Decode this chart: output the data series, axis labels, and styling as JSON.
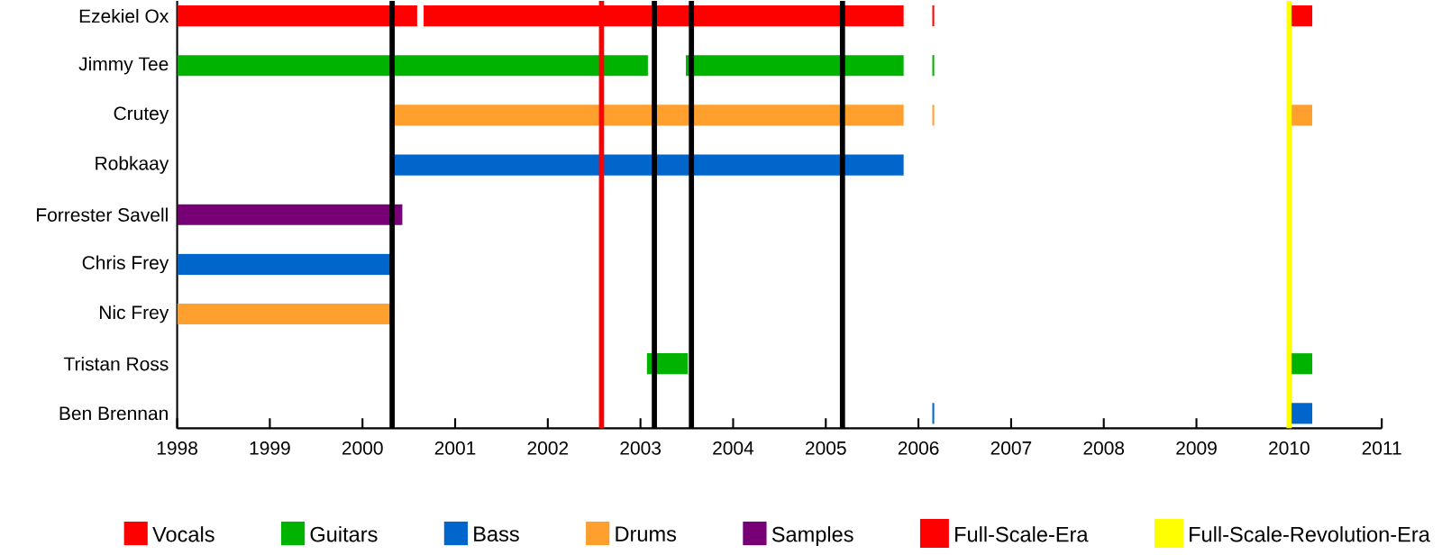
{
  "chart_data": {
    "type": "bar",
    "orientation": "horizontal",
    "legend": "bottom",
    "grid": false,
    "categories": [
      "Ezekiel Ox",
      "Jimmy Tee",
      "Crutey",
      "Robkaay",
      "Forrester Savell",
      "Chris Frey",
      "Nic Frey",
      "Tristan Ross",
      "Ben Brennan"
    ],
    "xlim": [
      1998,
      2011
    ],
    "xticks": [
      1998,
      1999,
      2000,
      2001,
      2002,
      2003,
      2004,
      2005,
      2006,
      2007,
      2008,
      2009,
      2010,
      2011
    ],
    "series": [
      {
        "name": "Vocals",
        "color": "#ff0000",
        "base": [
          1998,
          null,
          null,
          null,
          null,
          null,
          null,
          null,
          null
        ],
        "values": [
          2.59,
          null,
          null,
          null,
          null,
          null,
          null,
          null,
          null
        ]
      },
      {
        "color": "#ff0000",
        "base": [
          2000.66,
          null,
          null,
          null,
          null,
          null,
          null,
          null,
          null
        ],
        "values": [
          5.18,
          null,
          null,
          null,
          null,
          null,
          null,
          null,
          null
        ]
      },
      {
        "color": "#ff0000",
        "base": [
          2006.15,
          null,
          null,
          null,
          null,
          null,
          null,
          null,
          null
        ],
        "values": [
          0.02,
          null,
          null,
          null,
          null,
          null,
          null,
          null,
          null
        ]
      },
      {
        "color": "#ff0000",
        "base": [
          2010,
          null,
          null,
          null,
          null,
          null,
          null,
          null,
          null
        ],
        "values": [
          0.25,
          null,
          null,
          null,
          null,
          null,
          null,
          null,
          null
        ]
      },
      {
        "name": "Guitars",
        "color": "#00b300",
        "base": [
          null,
          1998,
          null,
          null,
          null,
          null,
          null,
          2003.07,
          null
        ],
        "values": [
          null,
          5.08,
          null,
          null,
          null,
          null,
          null,
          0.44,
          null
        ]
      },
      {
        "color": "#00b300",
        "base": [
          null,
          2003.49,
          null,
          null,
          null,
          null,
          null,
          2010,
          null
        ],
        "values": [
          null,
          2.35,
          null,
          null,
          null,
          null,
          null,
          0.25,
          null
        ]
      },
      {
        "color": "#00b300",
        "base": [
          null,
          2006.15,
          null,
          null,
          null,
          null,
          null,
          null,
          null
        ],
        "values": [
          null,
          0.02,
          null,
          null,
          null,
          null,
          null,
          null,
          null
        ]
      },
      {
        "name": "Bass",
        "color": "#0066cc",
        "base": [
          null,
          null,
          null,
          2000.31,
          null,
          1998,
          null,
          null,
          2006.15
        ],
        "values": [
          null,
          null,
          null,
          5.53,
          null,
          2.33,
          null,
          null,
          0.02
        ]
      },
      {
        "color": "#0066cc",
        "base": [
          null,
          null,
          null,
          null,
          null,
          null,
          null,
          null,
          2010
        ],
        "values": [
          null,
          null,
          null,
          null,
          null,
          null,
          null,
          null,
          0.25
        ]
      },
      {
        "name": "Drums",
        "color": "#ff9f2e",
        "base": [
          null,
          null,
          2000.31,
          null,
          null,
          null,
          1998,
          null,
          null
        ],
        "values": [
          null,
          null,
          5.53,
          null,
          null,
          null,
          2.33,
          null,
          null
        ]
      },
      {
        "color": "#ff9f2e",
        "base": [
          null,
          null,
          2006.15,
          null,
          null,
          null,
          null,
          null,
          null
        ],
        "values": [
          null,
          null,
          0.02,
          null,
          null,
          null,
          null,
          null,
          null
        ]
      },
      {
        "color": "#ff9f2e",
        "base": [
          null,
          null,
          2010,
          null,
          null,
          null,
          null,
          null,
          null
        ],
        "values": [
          null,
          null,
          0.25,
          null,
          null,
          null,
          null,
          null,
          null
        ]
      },
      {
        "name": "Samples",
        "color": "#770077",
        "base": [
          null,
          null,
          null,
          null,
          1998,
          null,
          null,
          null,
          null
        ],
        "values": [
          null,
          null,
          null,
          null,
          2.43,
          null,
          null,
          null,
          null
        ]
      }
    ],
    "ref_lines": [
      {
        "axis": "x",
        "value": 2000.32,
        "color": "#000000"
      },
      {
        "axis": "x",
        "value": 2002.58,
        "color": "#ff0000",
        "label": "Full-Scale-Era"
      },
      {
        "axis": "x",
        "value": 2003.15,
        "color": "#000000"
      },
      {
        "axis": "x",
        "value": 2003.55,
        "color": "#000000"
      },
      {
        "axis": "x",
        "value": 2005.18,
        "color": "#000000"
      },
      {
        "axis": "x",
        "value": 2010.0,
        "color": "#ffff00",
        "label": "Full-Scale-Revolution-Era"
      }
    ]
  }
}
